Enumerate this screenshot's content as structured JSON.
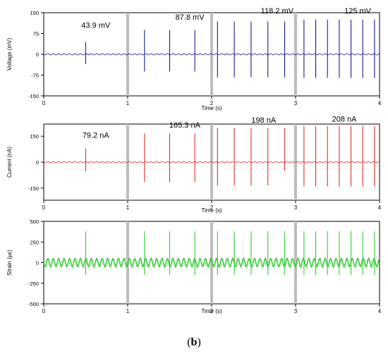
{
  "caption": {
    "open": "(",
    "label": "b",
    "close": ")"
  },
  "chart_data": [
    {
      "type": "line",
      "color": "#1a1a8c",
      "xlabel": "Time (s)",
      "ylabel": "Voltage (mV)",
      "xlim": [
        0,
        4
      ],
      "ylim": [
        -150,
        150
      ],
      "xticks": [
        0,
        1,
        2,
        3,
        4
      ],
      "yticks": [
        -150,
        -75,
        0,
        75,
        150
      ],
      "separators": [
        1,
        2,
        3
      ],
      "annotations": [
        {
          "text": "43.9 mV",
          "x": 0.62,
          "y": 95
        },
        {
          "text": "87.8 mV",
          "x": 1.74,
          "y": 125
        },
        {
          "text": "118.2 mV",
          "x": 2.78,
          "y": 148
        },
        {
          "text": "125 mV",
          "x": 3.74,
          "y": 148
        }
      ],
      "series": [
        {
          "values_desc": "peaks",
          "peaks": [
            {
              "x": 0.5,
              "y": 43.9,
              "ymin": -35
            },
            {
              "x": 1.2,
              "y": 87.8,
              "ymin": -62
            },
            {
              "x": 1.5,
              "y": 87.8,
              "ymin": -62
            },
            {
              "x": 1.8,
              "y": 87.8,
              "ymin": -62
            },
            {
              "x": 2.07,
              "y": 118.2,
              "ymin": -83
            },
            {
              "x": 2.27,
              "y": 118.2,
              "ymin": -83
            },
            {
              "x": 2.47,
              "y": 118.2,
              "ymin": -83
            },
            {
              "x": 2.67,
              "y": 118.2,
              "ymin": -83
            },
            {
              "x": 2.87,
              "y": 118.2,
              "ymin": -83
            },
            {
              "x": 3.1,
              "y": 125,
              "ymin": -85
            },
            {
              "x": 3.24,
              "y": 125,
              "ymin": -85
            },
            {
              "x": 3.38,
              "y": 125,
              "ymin": -85
            },
            {
              "x": 3.52,
              "y": 125,
              "ymin": -85
            },
            {
              "x": 3.66,
              "y": 125,
              "ymin": -85
            },
            {
              "x": 3.8,
              "y": 125,
              "ymin": -85
            },
            {
              "x": 3.94,
              "y": 125,
              "ymin": -85
            }
          ]
        }
      ]
    },
    {
      "type": "line",
      "color": "#d9302a",
      "xlabel": "Time (s)",
      "ylabel": "Current (nA)",
      "xlim": [
        0,
        4
      ],
      "ylim": [
        -220,
        220
      ],
      "xticks": [
        0,
        1,
        2,
        3,
        4
      ],
      "yticks": [
        -150,
        0,
        150
      ],
      "separators": [
        1,
        2,
        3
      ],
      "annotations": [
        {
          "text": "79.2 nA",
          "x": 0.62,
          "y": 140
        },
        {
          "text": "165.3 nA",
          "x": 1.68,
          "y": 200
        },
        {
          "text": "198 nA",
          "x": 2.62,
          "y": 228
        },
        {
          "text": "208 nA",
          "x": 3.58,
          "y": 234
        }
      ],
      "series": [
        {
          "values_desc": "peaks",
          "peaks": [
            {
              "x": 0.5,
              "y": 79.2,
              "ymin": -55
            },
            {
              "x": 1.2,
              "y": 165.3,
              "ymin": -115
            },
            {
              "x": 1.5,
              "y": 165.3,
              "ymin": -115
            },
            {
              "x": 1.8,
              "y": 165.3,
              "ymin": -115
            },
            {
              "x": 2.07,
              "y": 198,
              "ymin": -135
            },
            {
              "x": 2.27,
              "y": 198,
              "ymin": -135
            },
            {
              "x": 2.47,
              "y": 198,
              "ymin": -135
            },
            {
              "x": 2.67,
              "y": 198,
              "ymin": -135
            },
            {
              "x": 2.87,
              "y": 198,
              "ymin": -50
            },
            {
              "x": 3.1,
              "y": 208,
              "ymin": -140
            },
            {
              "x": 3.24,
              "y": 208,
              "ymin": -140
            },
            {
              "x": 3.38,
              "y": 208,
              "ymin": -140
            },
            {
              "x": 3.52,
              "y": 208,
              "ymin": -140
            },
            {
              "x": 3.66,
              "y": 208,
              "ymin": -140
            },
            {
              "x": 3.8,
              "y": 208,
              "ymin": -140
            },
            {
              "x": 3.94,
              "y": 208,
              "ymin": -140
            }
          ]
        }
      ]
    },
    {
      "type": "line",
      "color": "#33cc33",
      "xlabel": "Time (s)",
      "ylabel": "Strain (με)",
      "xlim": [
        0,
        4
      ],
      "ylim": [
        -500,
        500
      ],
      "xticks": [
        0,
        1,
        2,
        3,
        4
      ],
      "yticks": [
        -500,
        -250,
        0,
        250,
        500
      ],
      "separators": [
        1,
        2,
        3
      ],
      "annotations": [],
      "series": [
        {
          "values_desc": "peaks",
          "peaks": [
            {
              "x": 0.5,
              "y": 380,
              "ymin": -150
            },
            {
              "x": 1.2,
              "y": 380,
              "ymin": -150
            },
            {
              "x": 1.5,
              "y": 380,
              "ymin": -150
            },
            {
              "x": 1.8,
              "y": 380,
              "ymin": -150
            },
            {
              "x": 2.07,
              "y": 380,
              "ymin": -150
            },
            {
              "x": 2.27,
              "y": 380,
              "ymin": -150
            },
            {
              "x": 2.47,
              "y": 380,
              "ymin": -150
            },
            {
              "x": 2.67,
              "y": 380,
              "ymin": -150
            },
            {
              "x": 2.87,
              "y": 380,
              "ymin": -150
            },
            {
              "x": 3.1,
              "y": 380,
              "ymin": -150
            },
            {
              "x": 3.24,
              "y": 380,
              "ymin": -150
            },
            {
              "x": 3.38,
              "y": 380,
              "ymin": -150
            },
            {
              "x": 3.52,
              "y": 380,
              "ymin": -150
            },
            {
              "x": 3.66,
              "y": 380,
              "ymin": -150
            },
            {
              "x": 3.8,
              "y": 380,
              "ymin": -150
            },
            {
              "x": 3.94,
              "y": 380,
              "ymin": -150
            }
          ]
        }
      ]
    }
  ]
}
